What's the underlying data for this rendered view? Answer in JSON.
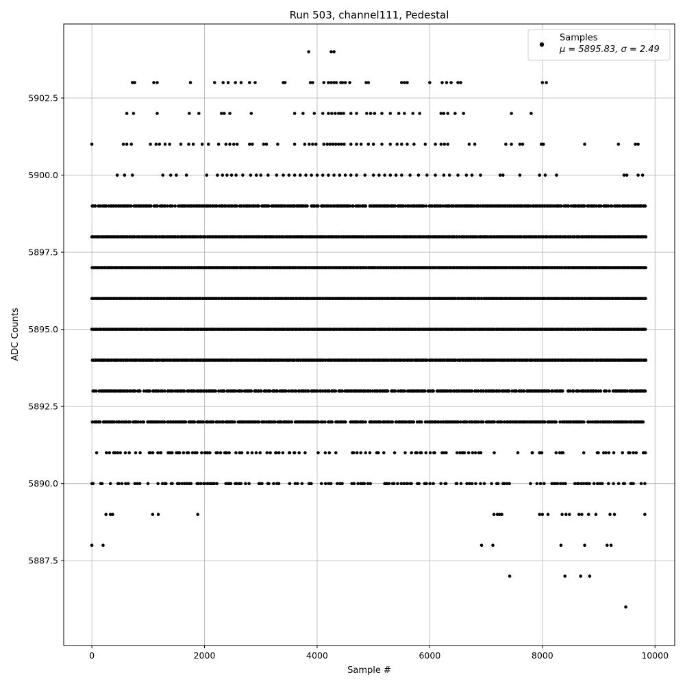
{
  "chart_data": {
    "type": "scatter",
    "title": "Run 503, channel111, Pedestal",
    "xlabel": "Sample #",
    "ylabel": "ADC Counts",
    "xlim": [
      -500,
      10350
    ],
    "ylim": [
      5884.75,
      5904.9
    ],
    "xticks": [
      0,
      2000,
      4000,
      6000,
      8000,
      10000
    ],
    "xtick_labels": [
      "0",
      "2000",
      "4000",
      "6000",
      "8000",
      "10000"
    ],
    "yticks": [
      5887.5,
      5890.0,
      5892.5,
      5895.0,
      5897.5,
      5900.0,
      5902.5
    ],
    "ytick_labels": [
      "5887.5",
      "5890.0",
      "5892.5",
      "5895.0",
      "5897.5",
      "5900.0",
      "5902.5"
    ],
    "grid": true,
    "legend": {
      "placement": "top-right",
      "entries": [
        "Samples",
        "μ = 5895.83, σ = 2.49"
      ]
    },
    "marker_color": "#000000",
    "n_samples": 9850,
    "series": [
      {
        "name": "Samples",
        "points": [
          [
            3850,
            5904
          ],
          [
            4250,
            5904
          ],
          [
            4300,
            5904
          ],
          [
            720,
            5903
          ],
          [
            760,
            5903
          ],
          [
            1100,
            5903
          ],
          [
            1160,
            5903
          ],
          [
            1750,
            5903
          ],
          [
            2180,
            5903
          ],
          [
            2330,
            5903
          ],
          [
            2420,
            5903
          ],
          [
            2550,
            5903
          ],
          [
            2650,
            5903
          ],
          [
            2800,
            5903
          ],
          [
            2900,
            5903
          ],
          [
            3400,
            5903
          ],
          [
            3430,
            5903
          ],
          [
            3880,
            5903
          ],
          [
            3920,
            5903
          ],
          [
            4120,
            5903
          ],
          [
            4200,
            5903
          ],
          [
            4250,
            5903
          ],
          [
            4300,
            5903
          ],
          [
            4340,
            5903
          ],
          [
            4420,
            5903
          ],
          [
            4450,
            5903
          ],
          [
            4500,
            5903
          ],
          [
            4580,
            5903
          ],
          [
            4870,
            5903
          ],
          [
            4910,
            5903
          ],
          [
            5500,
            5903
          ],
          [
            5550,
            5903
          ],
          [
            5600,
            5903
          ],
          [
            6000,
            5903
          ],
          [
            6220,
            5903
          ],
          [
            6300,
            5903
          ],
          [
            6380,
            5903
          ],
          [
            6500,
            5903
          ],
          [
            6550,
            5903
          ],
          [
            8000,
            5903
          ],
          [
            8070,
            5903
          ],
          [
            620,
            5902
          ],
          [
            740,
            5902
          ],
          [
            1160,
            5902
          ],
          [
            1730,
            5902
          ],
          [
            1900,
            5902
          ],
          [
            2300,
            5902
          ],
          [
            2350,
            5902
          ],
          [
            2450,
            5902
          ],
          [
            2830,
            5902
          ],
          [
            3600,
            5902
          ],
          [
            3750,
            5902
          ],
          [
            3950,
            5902
          ],
          [
            4100,
            5902
          ],
          [
            4200,
            5902
          ],
          [
            4260,
            5902
          ],
          [
            4320,
            5902
          ],
          [
            4380,
            5902
          ],
          [
            4420,
            5902
          ],
          [
            4470,
            5902
          ],
          [
            4600,
            5902
          ],
          [
            4700,
            5902
          ],
          [
            4880,
            5902
          ],
          [
            4950,
            5902
          ],
          [
            5020,
            5902
          ],
          [
            5150,
            5902
          ],
          [
            5300,
            5902
          ],
          [
            5450,
            5902
          ],
          [
            5550,
            5902
          ],
          [
            5700,
            5902
          ],
          [
            5820,
            5902
          ],
          [
            6200,
            5902
          ],
          [
            6250,
            5902
          ],
          [
            6320,
            5902
          ],
          [
            6450,
            5902
          ],
          [
            6600,
            5902
          ],
          [
            7450,
            5902
          ],
          [
            7800,
            5902
          ],
          [
            0,
            5901
          ],
          [
            560,
            5901
          ],
          [
            620,
            5901
          ],
          [
            700,
            5901
          ],
          [
            1040,
            5901
          ],
          [
            1140,
            5901
          ],
          [
            1200,
            5901
          ],
          [
            1300,
            5901
          ],
          [
            1380,
            5901
          ],
          [
            1580,
            5901
          ],
          [
            1720,
            5901
          ],
          [
            1800,
            5901
          ],
          [
            1960,
            5901
          ],
          [
            2070,
            5901
          ],
          [
            2250,
            5901
          ],
          [
            2380,
            5901
          ],
          [
            2450,
            5901
          ],
          [
            2520,
            5901
          ],
          [
            2580,
            5901
          ],
          [
            2800,
            5901
          ],
          [
            2850,
            5901
          ],
          [
            3050,
            5901
          ],
          [
            3100,
            5901
          ],
          [
            3300,
            5901
          ],
          [
            3600,
            5901
          ],
          [
            3780,
            5901
          ],
          [
            3860,
            5901
          ],
          [
            3920,
            5901
          ],
          [
            3980,
            5901
          ],
          [
            4120,
            5901
          ],
          [
            4180,
            5901
          ],
          [
            4230,
            5901
          ],
          [
            4280,
            5901
          ],
          [
            4330,
            5901
          ],
          [
            4380,
            5901
          ],
          [
            4430,
            5901
          ],
          [
            4480,
            5901
          ],
          [
            4600,
            5901
          ],
          [
            4700,
            5901
          ],
          [
            4780,
            5901
          ],
          [
            4910,
            5901
          ],
          [
            5000,
            5901
          ],
          [
            5150,
            5901
          ],
          [
            5300,
            5901
          ],
          [
            5420,
            5901
          ],
          [
            5500,
            5901
          ],
          [
            5600,
            5901
          ],
          [
            5720,
            5901
          ],
          [
            5920,
            5901
          ],
          [
            6100,
            5901
          ],
          [
            6200,
            5901
          ],
          [
            6260,
            5901
          ],
          [
            6320,
            5901
          ],
          [
            6700,
            5901
          ],
          [
            6800,
            5901
          ],
          [
            7350,
            5901
          ],
          [
            7450,
            5901
          ],
          [
            7600,
            5901
          ],
          [
            7650,
            5901
          ],
          [
            7980,
            5901
          ],
          [
            8020,
            5901
          ],
          [
            8750,
            5901
          ],
          [
            9350,
            5901
          ],
          [
            9650,
            5901
          ],
          [
            9700,
            5901
          ],
          [
            450,
            5900
          ],
          [
            580,
            5900
          ],
          [
            720,
            5900
          ],
          [
            1260,
            5900
          ],
          [
            1400,
            5900
          ],
          [
            1500,
            5900
          ],
          [
            1680,
            5900
          ],
          [
            2040,
            5900
          ],
          [
            2230,
            5900
          ],
          [
            2320,
            5900
          ],
          [
            2400,
            5900
          ],
          [
            2480,
            5900
          ],
          [
            2560,
            5900
          ],
          [
            2680,
            5900
          ],
          [
            2820,
            5900
          ],
          [
            2920,
            5900
          ],
          [
            3000,
            5900
          ],
          [
            3130,
            5900
          ],
          [
            3280,
            5900
          ],
          [
            3400,
            5900
          ],
          [
            3500,
            5900
          ],
          [
            3600,
            5900
          ],
          [
            3700,
            5900
          ],
          [
            3800,
            5900
          ],
          [
            3900,
            5900
          ],
          [
            4000,
            5900
          ],
          [
            4100,
            5900
          ],
          [
            4200,
            5900
          ],
          [
            4300,
            5900
          ],
          [
            4400,
            5900
          ],
          [
            4500,
            5900
          ],
          [
            4600,
            5900
          ],
          [
            4700,
            5900
          ],
          [
            4850,
            5900
          ],
          [
            5000,
            5900
          ],
          [
            5100,
            5900
          ],
          [
            5200,
            5900
          ],
          [
            5300,
            5900
          ],
          [
            5400,
            5900
          ],
          [
            5500,
            5900
          ],
          [
            5650,
            5900
          ],
          [
            5800,
            5900
          ],
          [
            5950,
            5900
          ],
          [
            6100,
            5900
          ],
          [
            6250,
            5900
          ],
          [
            6350,
            5900
          ],
          [
            6500,
            5900
          ],
          [
            6650,
            5900
          ],
          [
            6750,
            5900
          ],
          [
            6900,
            5900
          ],
          [
            7250,
            5900
          ],
          [
            7300,
            5900
          ],
          [
            7600,
            5900
          ],
          [
            7950,
            5900
          ],
          [
            8050,
            5900
          ],
          [
            8250,
            5900
          ],
          [
            9450,
            5900
          ],
          [
            9500,
            5900
          ],
          [
            9700,
            5900
          ],
          [
            9780,
            5900
          ],
          [
            0,
            5888
          ],
          [
            200,
            5888
          ],
          [
            6920,
            5888
          ],
          [
            7120,
            5888
          ],
          [
            8330,
            5888
          ],
          [
            8750,
            5888
          ],
          [
            9150,
            5888
          ],
          [
            9220,
            5888
          ],
          [
            250,
            5889
          ],
          [
            330,
            5889
          ],
          [
            370,
            5889
          ],
          [
            1080,
            5889
          ],
          [
            1180,
            5889
          ],
          [
            1880,
            5889
          ],
          [
            7140,
            5889
          ],
          [
            7200,
            5889
          ],
          [
            7240,
            5889
          ],
          [
            7280,
            5889
          ],
          [
            7950,
            5889
          ],
          [
            8000,
            5889
          ],
          [
            8100,
            5889
          ],
          [
            8350,
            5889
          ],
          [
            8420,
            5889
          ],
          [
            8480,
            5889
          ],
          [
            8650,
            5889
          ],
          [
            8700,
            5889
          ],
          [
            8820,
            5889
          ],
          [
            8950,
            5889
          ],
          [
            9200,
            5889
          ],
          [
            9280,
            5889
          ],
          [
            9820,
            5889
          ],
          [
            7420,
            5887
          ],
          [
            8400,
            5887
          ],
          [
            8680,
            5887
          ],
          [
            8840,
            5887
          ],
          [
            9480,
            5886
          ]
        ]
      }
    ],
    "dense_levels": [
      {
        "y": 5899,
        "density": 0.9
      },
      {
        "y": 5898,
        "density": 1.0
      },
      {
        "y": 5897,
        "density": 1.0
      },
      {
        "y": 5896,
        "density": 1.0
      },
      {
        "y": 5895,
        "density": 1.0
      },
      {
        "y": 5894,
        "density": 1.0
      },
      {
        "y": 5893,
        "density": 0.85
      },
      {
        "y": 5892,
        "density": 0.8
      },
      {
        "y": 5891,
        "density": 0.25
      },
      {
        "y": 5890,
        "density": 0.3
      }
    ]
  }
}
